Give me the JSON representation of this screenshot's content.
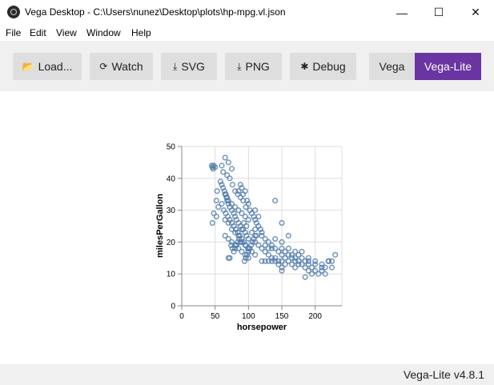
{
  "window": {
    "title": "Vega Desktop - C:\\Users\\nunez\\Desktop\\plots\\hp-mpg.vl.json",
    "controls": {
      "minimize": "—",
      "maximize": "☐",
      "close": "✕"
    }
  },
  "menu": [
    "File",
    "Edit",
    "View",
    "Window",
    "Help"
  ],
  "toolbar": {
    "buttons": [
      {
        "label": "Load...",
        "icon": "folder-open-icon"
      },
      {
        "label": "Watch",
        "icon": "refresh-icon"
      },
      {
        "label": "SVG",
        "icon": "download-icon"
      },
      {
        "label": "PNG",
        "icon": "download-icon"
      },
      {
        "label": "Debug",
        "icon": "bug-icon"
      }
    ],
    "modes": [
      {
        "label": "Vega",
        "active": false
      },
      {
        "label": "Vega-Lite",
        "active": true
      }
    ],
    "active_color": "#6a35a2"
  },
  "status": {
    "version": "Vega-Lite v4.8.1"
  },
  "chart_data": {
    "type": "scatter",
    "xlabel": "horsepower",
    "ylabel": "milesPerGallon",
    "xlim": [
      0,
      240
    ],
    "ylim": [
      0,
      50
    ],
    "x_ticks": [
      0,
      50,
      100,
      150,
      200
    ],
    "y_ticks": [
      0,
      10,
      20,
      30,
      40,
      50
    ],
    "grid": true,
    "point_color": "#4c78a8",
    "points": [
      [
        45,
        44
      ],
      [
        46,
        43.5
      ],
      [
        48,
        44
      ],
      [
        47,
        43
      ],
      [
        50,
        43.5
      ],
      [
        46,
        26
      ],
      [
        48,
        29
      ],
      [
        52,
        28
      ],
      [
        55,
        31
      ],
      [
        52,
        33
      ],
      [
        53,
        36
      ],
      [
        58,
        39
      ],
      [
        60,
        38
      ],
      [
        62,
        37
      ],
      [
        65,
        35
      ],
      [
        67,
        34
      ],
      [
        68,
        33
      ],
      [
        70,
        32
      ],
      [
        72,
        31
      ],
      [
        75,
        30
      ],
      [
        78,
        29
      ],
      [
        80,
        28
      ],
      [
        82,
        27
      ],
      [
        85,
        26
      ],
      [
        88,
        25
      ],
      [
        90,
        24
      ],
      [
        92,
        24
      ],
      [
        95,
        23
      ],
      [
        97,
        22
      ],
      [
        100,
        21
      ],
      [
        60,
        44
      ],
      [
        65,
        46.5
      ],
      [
        70,
        45
      ],
      [
        75,
        43
      ],
      [
        62,
        42
      ],
      [
        68,
        41
      ],
      [
        72,
        40
      ],
      [
        76,
        38
      ],
      [
        80,
        36
      ],
      [
        84,
        35
      ],
      [
        88,
        34
      ],
      [
        92,
        33
      ],
      [
        96,
        31
      ],
      [
        60,
        32
      ],
      [
        63,
        30
      ],
      [
        66,
        29
      ],
      [
        69,
        28
      ],
      [
        72,
        27
      ],
      [
        75,
        26
      ],
      [
        78,
        25
      ],
      [
        81,
        24
      ],
      [
        84,
        23
      ],
      [
        87,
        22
      ],
      [
        90,
        21
      ],
      [
        93,
        20
      ],
      [
        96,
        19
      ],
      [
        99,
        18
      ],
      [
        65,
        27
      ],
      [
        70,
        26
      ],
      [
        75,
        24
      ],
      [
        80,
        23
      ],
      [
        85,
        22
      ],
      [
        90,
        20
      ],
      [
        95,
        19
      ],
      [
        100,
        18
      ],
      [
        105,
        17
      ],
      [
        110,
        16
      ],
      [
        65,
        22
      ],
      [
        70,
        21
      ],
      [
        75,
        20
      ],
      [
        80,
        19
      ],
      [
        85,
        18
      ],
      [
        90,
        17
      ],
      [
        95,
        16
      ],
      [
        100,
        15
      ],
      [
        85,
        36
      ],
      [
        88,
        38
      ],
      [
        90,
        37
      ],
      [
        92,
        35
      ],
      [
        95,
        36
      ],
      [
        98,
        33
      ],
      [
        100,
        32
      ],
      [
        102,
        30
      ],
      [
        105,
        29
      ],
      [
        108,
        28
      ],
      [
        110,
        27
      ],
      [
        112,
        26
      ],
      [
        115,
        25
      ],
      [
        118,
        24
      ],
      [
        120,
        23
      ],
      [
        110,
        30
      ],
      [
        115,
        28
      ],
      [
        120,
        22
      ],
      [
        125,
        21
      ],
      [
        130,
        20
      ],
      [
        135,
        19
      ],
      [
        140,
        18
      ],
      [
        145,
        17
      ],
      [
        150,
        16
      ],
      [
        155,
        15
      ],
      [
        110,
        20
      ],
      [
        115,
        19
      ],
      [
        120,
        18
      ],
      [
        125,
        17
      ],
      [
        130,
        16
      ],
      [
        135,
        15
      ],
      [
        140,
        14
      ],
      [
        145,
        13
      ],
      [
        150,
        12
      ],
      [
        150,
        18
      ],
      [
        155,
        17
      ],
      [
        160,
        16
      ],
      [
        165,
        15
      ],
      [
        170,
        14
      ],
      [
        175,
        13
      ],
      [
        150,
        14
      ],
      [
        155,
        13
      ],
      [
        160,
        14
      ],
      [
        165,
        13
      ],
      [
        170,
        12
      ],
      [
        175,
        14
      ],
      [
        180,
        13
      ],
      [
        185,
        12
      ],
      [
        190,
        11
      ],
      [
        195,
        10
      ],
      [
        180,
        15
      ],
      [
        185,
        14
      ],
      [
        190,
        13
      ],
      [
        195,
        12
      ],
      [
        200,
        11
      ],
      [
        205,
        10
      ],
      [
        210,
        11
      ],
      [
        215,
        12
      ],
      [
        220,
        14
      ],
      [
        225,
        14
      ],
      [
        230,
        16
      ],
      [
        140,
        33
      ],
      [
        150,
        26
      ],
      [
        160,
        22
      ],
      [
        170,
        17
      ],
      [
        180,
        17
      ],
      [
        190,
        15
      ],
      [
        200,
        14
      ],
      [
        210,
        13
      ],
      [
        220,
        14
      ],
      [
        225,
        12
      ],
      [
        110,
        22
      ],
      [
        108,
        21
      ],
      [
        106,
        20
      ],
      [
        104,
        19
      ],
      [
        102,
        18
      ],
      [
        100,
        17
      ],
      [
        98,
        16
      ],
      [
        96,
        15
      ],
      [
        94,
        14
      ],
      [
        70,
        15
      ],
      [
        72,
        15
      ],
      [
        88,
        20
      ],
      [
        86,
        21
      ],
      [
        84,
        20
      ],
      [
        82,
        19
      ],
      [
        80,
        18
      ],
      [
        78,
        17
      ],
      [
        76,
        18
      ],
      [
        74,
        19
      ],
      [
        120,
        14
      ],
      [
        125,
        14
      ],
      [
        130,
        14
      ],
      [
        135,
        14
      ],
      [
        140,
        15
      ],
      [
        145,
        14
      ],
      [
        165,
        16
      ],
      [
        160,
        18
      ],
      [
        170,
        15
      ],
      [
        100,
        27
      ],
      [
        95,
        28
      ],
      [
        90,
        29
      ],
      [
        85,
        30
      ],
      [
        80,
        31
      ],
      [
        75,
        32
      ],
      [
        70,
        33
      ],
      [
        68,
        34
      ],
      [
        66,
        35
      ],
      [
        64,
        36
      ],
      [
        110,
        24
      ],
      [
        112,
        22
      ],
      [
        105,
        23
      ],
      [
        97,
        25
      ],
      [
        93,
        26
      ],
      [
        150,
        20
      ],
      [
        140,
        21
      ],
      [
        135,
        18
      ],
      [
        130,
        18
      ],
      [
        125,
        19
      ],
      [
        190,
        14
      ],
      [
        175,
        16
      ],
      [
        200,
        13
      ],
      [
        210,
        12
      ],
      [
        150,
        11
      ],
      [
        185,
        9
      ],
      [
        215,
        10
      ]
    ]
  }
}
